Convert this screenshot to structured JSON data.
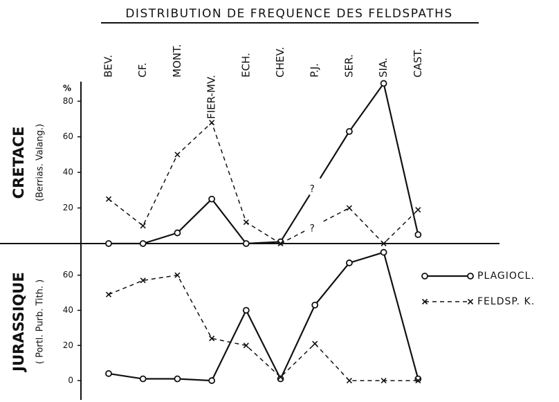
{
  "chart_data": {
    "type": "line",
    "title": "DISTRIBUTION DE FREQUENCE DES FELDSPATHS",
    "categories": [
      "BEV.",
      "CF.",
      "MONT.",
      "FIER-MV.",
      "ECH.",
      "CHEV.",
      "P.J.",
      "SER.",
      "SIA.",
      "CAST."
    ],
    "legend": [
      "PLAGIOCL.",
      "FELDSP. K."
    ],
    "color": "#111111",
    "panels": [
      {
        "label": "CRETACE",
        "sublabel": "(Berrias. Valang.)",
        "unit": "%",
        "ylim": [
          0,
          91
        ],
        "yticks": [
          20,
          40,
          60,
          80
        ],
        "series": [
          {
            "values": [
              0,
              0,
              6,
              25,
              0,
              1,
              null,
              63,
              90,
              5
            ],
            "marker": "circle",
            "dashed": false,
            "annotation": "?"
          },
          {
            "values": [
              25,
              10,
              50,
              68,
              12,
              0,
              null,
              20,
              0,
              19
            ],
            "marker": "x",
            "dashed": true,
            "annotation": "?"
          }
        ]
      },
      {
        "label": "JURASSIQUE",
        "sublabel": "( Portl. Purb. Tith. )",
        "ylim": [
          -11,
          78
        ],
        "yticks": [
          0,
          20,
          40,
          60
        ],
        "series": [
          {
            "values": [
              4,
              1,
              1,
              0,
              40,
              1,
              43,
              67,
              73,
              1
            ],
            "marker": "circle",
            "dashed": false
          },
          {
            "values": [
              49,
              57,
              60,
              24,
              20,
              2,
              21,
              0,
              0,
              0
            ],
            "marker": "x",
            "dashed": true
          }
        ]
      }
    ]
  }
}
